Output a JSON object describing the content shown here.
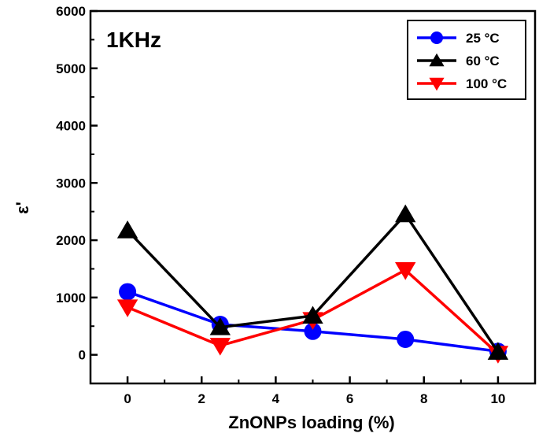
{
  "chart_data": {
    "type": "line",
    "annotation": "1KHz",
    "xlabel": "ZnONPs loading (%)",
    "ylabel": "ε'",
    "xlim": [
      -1,
      11
    ],
    "ylim": [
      -500,
      6000
    ],
    "x_ticks": [
      0,
      2,
      4,
      6,
      8,
      10
    ],
    "y_ticks": [
      0,
      1000,
      2000,
      3000,
      4000,
      5000,
      6000
    ],
    "x": [
      0,
      2.5,
      5,
      7.5,
      10
    ],
    "legend_position": "top-right",
    "grid": false,
    "series": [
      {
        "name": "25 °C",
        "color": "#0000ff",
        "marker": "circle",
        "values": [
          1100,
          530,
          410,
          270,
          60
        ]
      },
      {
        "name": "60 °C",
        "color": "#000000",
        "marker": "triangle-up",
        "values": [
          2170,
          480,
          680,
          2450,
          50
        ]
      },
      {
        "name": "100 °C",
        "color": "#ff0000",
        "marker": "triangle-down",
        "values": [
          830,
          160,
          610,
          1480,
          20
        ]
      }
    ]
  }
}
